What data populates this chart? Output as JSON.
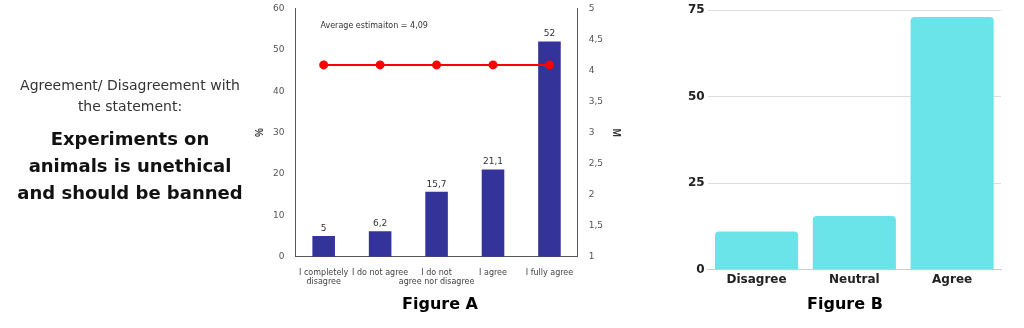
{
  "chart_data": [
    {
      "type": "other",
      "title": "Agreement/ Disagreement with the statement:",
      "subtitle": "Experiments on animals is unethical and should be banned"
    },
    {
      "type": "bar",
      "xlabel": "Figure A",
      "ylabel": "%",
      "y2label": "M",
      "categories": [
        "I completely disagree",
        "I do not agree",
        "I do  not agree nor disagree",
        "I agree",
        "I fully agree"
      ],
      "series": [
        {
          "type": "bar",
          "color": "#333399",
          "values": [
            5,
            6.2,
            15.7,
            21.1,
            52
          ],
          "value_labels": [
            "5",
            "6,2",
            "15,7",
            "21,1",
            "52"
          ]
        },
        {
          "type": "line",
          "axis": "y2",
          "color": "#ff0000",
          "values": [
            4.09,
            4.09,
            4.09,
            4.09,
            4.09
          ]
        }
      ],
      "marker": "circle",
      "ylim": [
        0,
        60
      ],
      "yticks": [
        0,
        10,
        20,
        30,
        40,
        50,
        60
      ],
      "y2lim": [
        1,
        5
      ],
      "y2ticks": [
        1,
        {
          "value": 1.5,
          "label": "1,5"
        },
        2,
        {
          "value": 2.5,
          "label": "2,5"
        },
        3,
        {
          "value": 3.5,
          "label": "3,5"
        },
        4,
        {
          "value": 4.5,
          "label": "4,5"
        },
        5
      ],
      "annotations": [
        "Average estimaiton = 4,09"
      ],
      "grid": false
    },
    {
      "type": "bar",
      "xlabel": "Figure B",
      "categories": [
        "Disagree",
        "Neutral",
        "Agree"
      ],
      "values": [
        11,
        15.5,
        73
      ],
      "color": "#6ae4e8",
      "ylim": [
        0,
        75
      ],
      "yticks": [
        0,
        25,
        50,
        75
      ],
      "grid": "y"
    }
  ]
}
